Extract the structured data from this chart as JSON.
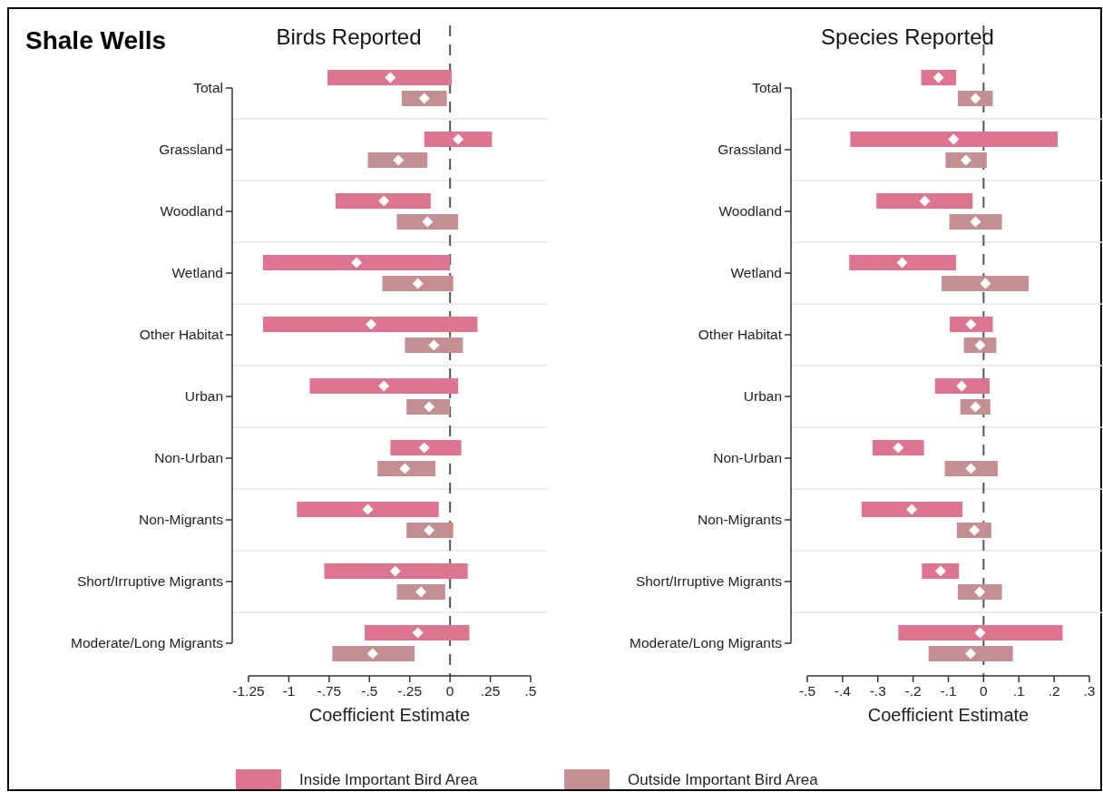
{
  "chart_data": [
    {
      "type": "bar",
      "orientation": "horizontal",
      "title": "Birds Reported",
      "xlabel": "Coefficient Estimate",
      "annotations": [
        "Shale Wells"
      ],
      "categories": [
        "Total",
        "Grassland",
        "Woodland",
        "Wetland",
        "Other Habitat",
        "Urban",
        "Non-Urban",
        "Non-Migrants",
        "Short/Irruptive Migrants",
        "Moderate/Long Migrants"
      ],
      "series": [
        {
          "name": "Inside Important Bird Area",
          "color": "#dd7590",
          "base": [
            -0.76,
            -0.16,
            -0.71,
            -1.16,
            -1.16,
            -0.87,
            -0.37,
            -0.95,
            -0.78,
            -0.53
          ],
          "values": [
            0.77,
            0.42,
            0.59,
            1.16,
            1.33,
            0.92,
            0.44,
            0.88,
            0.89,
            0.65
          ]
        },
        {
          "name": "Outside Important Bird Area",
          "color": "#c38f92",
          "base": [
            -0.3,
            -0.51,
            -0.33,
            -0.42,
            -0.28,
            -0.27,
            -0.45,
            -0.27,
            -0.33,
            -0.73
          ],
          "values": [
            0.28,
            0.37,
            0.38,
            0.44,
            0.36,
            0.27,
            0.36,
            0.29,
            0.3,
            0.51
          ]
        },
        {
          "type": "scatter",
          "color": "#ffffff",
          "marker": "diamond",
          "values": [
            -0.37,
            0.05,
            -0.41,
            -0.58,
            -0.49,
            -0.41,
            -0.16,
            -0.51,
            -0.34,
            -0.2
          ]
        },
        {
          "type": "scatter",
          "color": "#ffffff",
          "marker": "diamond",
          "values": [
            -0.16,
            -0.32,
            -0.14,
            -0.2,
            -0.1,
            -0.13,
            -0.28,
            -0.13,
            -0.18,
            -0.48
          ]
        }
      ],
      "xlim": [
        -1.25,
        0.5
      ],
      "xticks": [
        -1.25,
        -1,
        {
          "value": -0.75,
          "label": "-.75"
        },
        {
          "value": -0.5,
          "label": "-.5"
        },
        {
          "value": -0.25,
          "label": "-.25"
        },
        0,
        {
          "value": 0.25,
          "label": ".25"
        },
        {
          "value": 0.5,
          "label": ".5"
        }
      ],
      "ref_lines": [
        {
          "axis": "x",
          "value": 0,
          "color": "#555555",
          "line_style": "dashed"
        }
      ],
      "grid": "y",
      "legend": "bottom"
    },
    {
      "type": "bar",
      "orientation": "horizontal",
      "title": "Species Reported",
      "xlabel": "Coefficient Estimate",
      "categories": [
        "Total",
        "Grassland",
        "Woodland",
        "Wetland",
        "Other Habitat",
        "Urban",
        "Non-Urban",
        "Non-Migrants",
        "Short/Irruptive Migrants",
        "Moderate/Long Migrants"
      ],
      "series": [
        {
          "color": "#dd7590",
          "base": [
            -0.177,
            -0.378,
            -0.304,
            -0.381,
            -0.096,
            -0.138,
            -0.315,
            -0.346,
            -0.175,
            -0.242
          ],
          "values": [
            0.099,
            0.588,
            0.273,
            0.303,
            0.122,
            0.155,
            0.146,
            0.286,
            0.105,
            0.466
          ]
        },
        {
          "color": "#c38f92",
          "base": [
            -0.073,
            -0.108,
            -0.097,
            -0.119,
            -0.056,
            -0.066,
            -0.11,
            -0.076,
            -0.073,
            -0.156
          ],
          "values": [
            0.099,
            0.117,
            0.149,
            0.247,
            0.092,
            0.085,
            0.15,
            0.098,
            0.125,
            0.239
          ]
        },
        {
          "type": "scatter",
          "color": "#ffffff",
          "marker": "diamond",
          "values": [
            -0.128,
            -0.085,
            -0.167,
            -0.231,
            -0.036,
            -0.062,
            -0.242,
            -0.204,
            -0.122,
            -0.01
          ]
        },
        {
          "type": "scatter",
          "color": "#ffffff",
          "marker": "diamond",
          "values": [
            -0.023,
            -0.05,
            -0.023,
            0.005,
            -0.01,
            -0.023,
            -0.036,
            -0.026,
            -0.011,
            -0.037
          ]
        }
      ],
      "xlim": [
        -0.5,
        0.3
      ],
      "xticks": [
        {
          "value": -0.5,
          "label": "-.5"
        },
        {
          "value": -0.4,
          "label": "-.4"
        },
        {
          "value": -0.3,
          "label": "-.3"
        },
        {
          "value": -0.2,
          "label": "-.2"
        },
        {
          "value": -0.1,
          "label": "-.1"
        },
        0,
        {
          "value": 0.1,
          "label": ".1"
        },
        {
          "value": 0.2,
          "label": ".2"
        },
        {
          "value": 0.3,
          "label": ".3"
        }
      ],
      "ref_lines": [
        {
          "axis": "x",
          "value": 0,
          "color": "#555555",
          "line_style": "dashed"
        }
      ],
      "grid": "y"
    }
  ]
}
